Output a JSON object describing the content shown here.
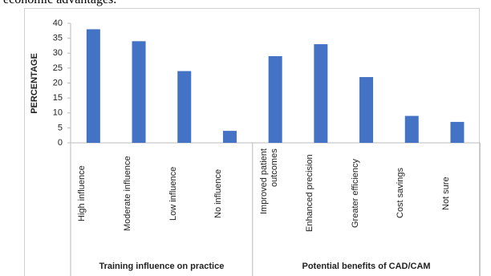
{
  "caption": "economic advantages.",
  "chart_data": {
    "type": "bar",
    "y_label": "PERCENTAGE",
    "color": "#4472c4",
    "ylim": [
      0,
      40
    ],
    "yticks": [
      0,
      5,
      10,
      15,
      20,
      25,
      30,
      35,
      40
    ],
    "groups": [
      {
        "name": "Training influence on practice",
        "categories": [
          "High influence",
          "Moderate influence",
          "Low influence",
          "No influence"
        ],
        "values": [
          38,
          34,
          24,
          4
        ]
      },
      {
        "name": "Potential benefits of CAD/CAM",
        "categories": [
          "Improved patient outcomes",
          "Enhanced precision",
          "Greater efficiency",
          "Cost savings",
          "Not sure"
        ],
        "values": [
          29,
          33,
          22,
          9,
          7
        ]
      }
    ]
  }
}
